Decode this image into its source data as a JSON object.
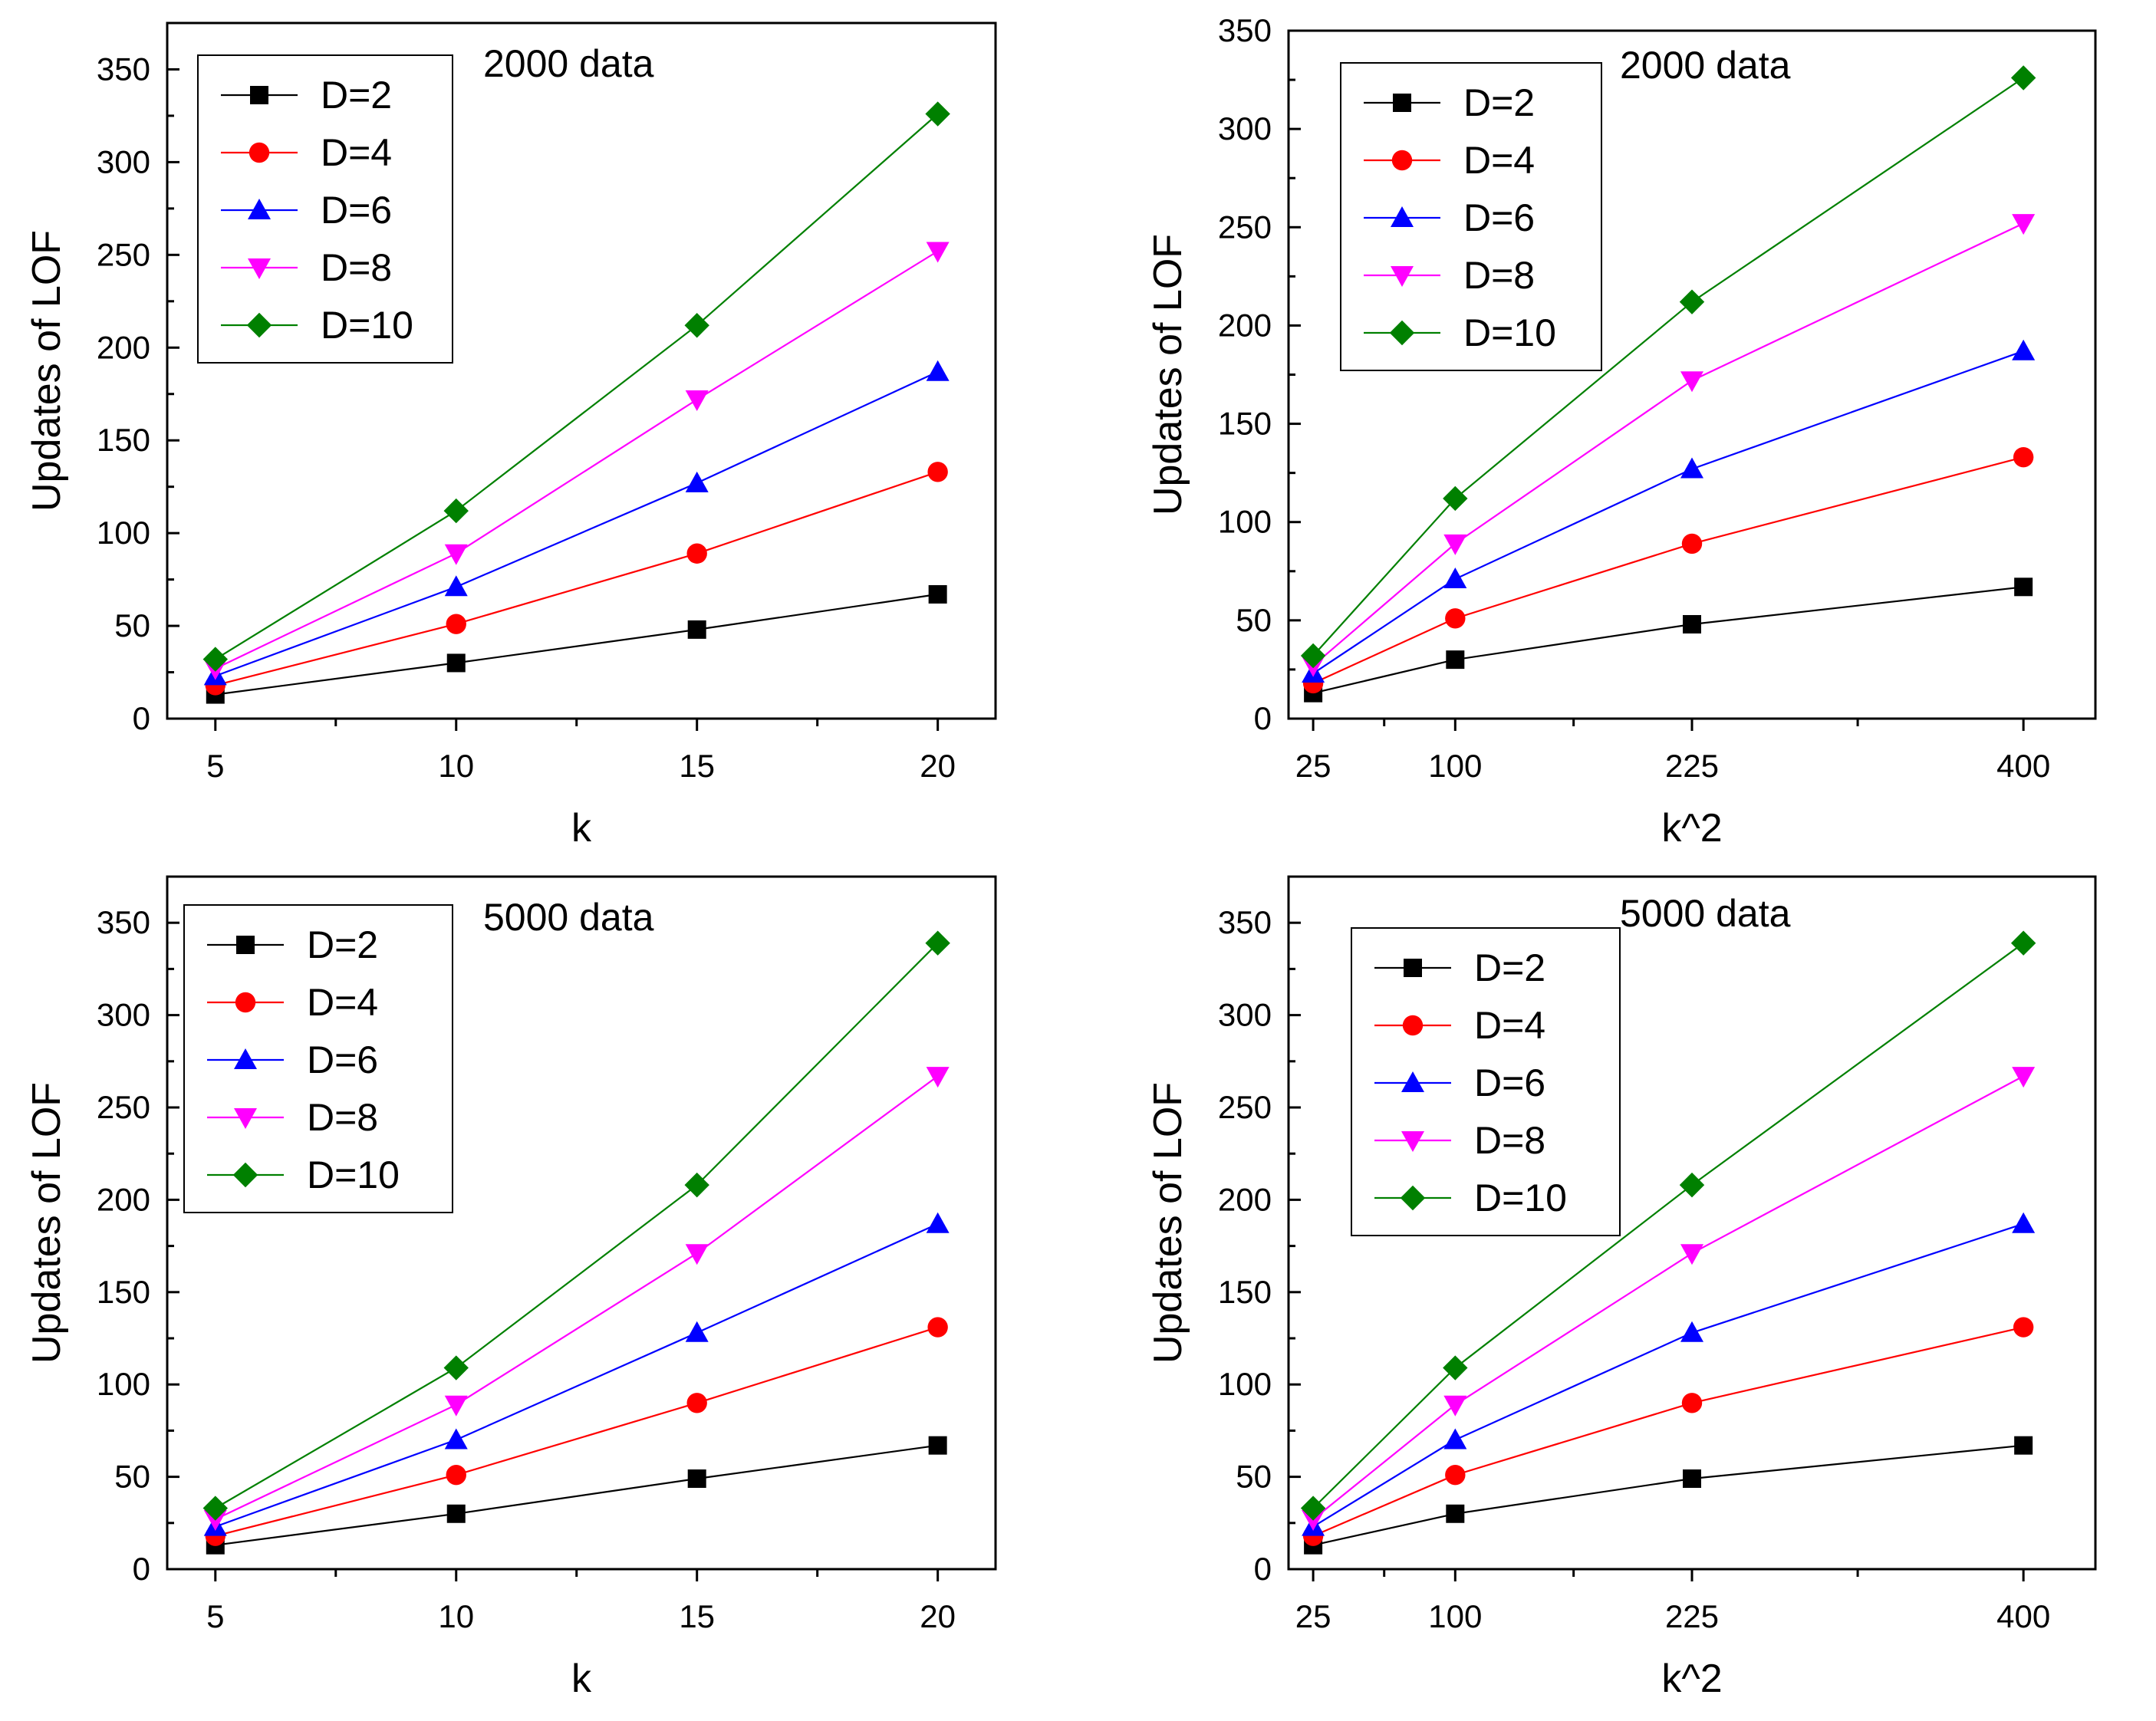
{
  "chart_data": [
    {
      "type": "line",
      "title": "2000 data",
      "xlabel": "k",
      "ylabel": "Updates of LOF",
      "x": [
        5,
        10,
        15,
        20
      ],
      "xticks": [
        5,
        10,
        15,
        20
      ],
      "xtick_labels": [
        "5",
        "10",
        "15",
        "20"
      ],
      "xminor": [
        7.5,
        12.5,
        17.5
      ],
      "xlim": [
        4,
        21.2
      ],
      "ylim": [
        0,
        375
      ],
      "yticks": [
        0,
        50,
        100,
        150,
        200,
        250,
        300,
        350
      ],
      "ytick_labels": [
        "0",
        "50",
        "100",
        "150",
        "200",
        "250",
        "300",
        "350"
      ],
      "legend_loc": "top-left",
      "series": [
        {
          "name": "D=2",
          "values": [
            13,
            30,
            48,
            67
          ],
          "color": "#000000",
          "marker": "square"
        },
        {
          "name": "D=4",
          "values": [
            18,
            51,
            89,
            133
          ],
          "color": "#ff0000",
          "marker": "circle"
        },
        {
          "name": "D=6",
          "values": [
            23,
            71,
            127,
            187
          ],
          "color": "#0000ff",
          "marker": "triangle-up"
        },
        {
          "name": "D=8",
          "values": [
            27,
            89,
            172,
            252
          ],
          "color": "#ff00ff",
          "marker": "triangle-down"
        },
        {
          "name": "D=10",
          "values": [
            32,
            112,
            212,
            326
          ],
          "color": "#008000",
          "marker": "diamond"
        }
      ]
    },
    {
      "type": "line",
      "title": "2000 data",
      "xlabel": "k^2",
      "ylabel": "Updates of LOF",
      "x": [
        25,
        100,
        225,
        400
      ],
      "xticks": [
        25,
        100,
        225,
        400
      ],
      "xtick_labels": [
        "25",
        "100",
        "225",
        "400"
      ],
      "xminor": [
        62.5,
        162.5,
        312.5
      ],
      "xlim": [
        12,
        438
      ],
      "ylim": [
        0,
        350
      ],
      "yticks": [
        0,
        50,
        100,
        150,
        200,
        250,
        300,
        350
      ],
      "ytick_labels": [
        "0",
        "50",
        "100",
        "150",
        "200",
        "250",
        "300",
        "350"
      ],
      "legend_loc": "top-left",
      "series": [
        {
          "name": "D=2",
          "values": [
            13,
            30,
            48,
            67
          ],
          "color": "#000000",
          "marker": "square"
        },
        {
          "name": "D=4",
          "values": [
            18,
            51,
            89,
            133
          ],
          "color": "#ff0000",
          "marker": "circle"
        },
        {
          "name": "D=6",
          "values": [
            23,
            71,
            127,
            187
          ],
          "color": "#0000ff",
          "marker": "triangle-up"
        },
        {
          "name": "D=8",
          "values": [
            27,
            89,
            172,
            252
          ],
          "color": "#ff00ff",
          "marker": "triangle-down"
        },
        {
          "name": "D=10",
          "values": [
            32,
            112,
            212,
            326
          ],
          "color": "#008000",
          "marker": "diamond"
        }
      ]
    },
    {
      "type": "line",
      "title": "5000 data",
      "xlabel": "k",
      "ylabel": "Updates of LOF",
      "x": [
        5,
        10,
        15,
        20
      ],
      "xticks": [
        5,
        10,
        15,
        20
      ],
      "xtick_labels": [
        "5",
        "10",
        "15",
        "20"
      ],
      "xminor": [
        7.5,
        12.5,
        17.5
      ],
      "xlim": [
        4,
        21.2
      ],
      "ylim": [
        0,
        375
      ],
      "yticks": [
        0,
        50,
        100,
        150,
        200,
        250,
        300,
        350
      ],
      "ytick_labels": [
        "0",
        "50",
        "100",
        "150",
        "200",
        "250",
        "300",
        "350"
      ],
      "legend_loc": "top-left",
      "series": [
        {
          "name": "D=2",
          "values": [
            13,
            30,
            49,
            67
          ],
          "color": "#000000",
          "marker": "square"
        },
        {
          "name": "D=4",
          "values": [
            18,
            51,
            90,
            131
          ],
          "color": "#ff0000",
          "marker": "circle"
        },
        {
          "name": "D=6",
          "values": [
            23,
            70,
            128,
            187
          ],
          "color": "#0000ff",
          "marker": "triangle-up"
        },
        {
          "name": "D=8",
          "values": [
            27,
            89,
            171,
            267
          ],
          "color": "#ff00ff",
          "marker": "triangle-down"
        },
        {
          "name": "D=10",
          "values": [
            33,
            109,
            208,
            339
          ],
          "color": "#008000",
          "marker": "diamond"
        }
      ]
    },
    {
      "type": "line",
      "title": "5000 data",
      "xlabel": "k^2",
      "ylabel": "Updates of LOF",
      "x": [
        25,
        100,
        225,
        400
      ],
      "xticks": [
        25,
        100,
        225,
        400
      ],
      "xtick_labels": [
        "25",
        "100",
        "225",
        "400"
      ],
      "xminor": [
        62.5,
        162.5,
        312.5
      ],
      "xlim": [
        12,
        438
      ],
      "ylim": [
        0,
        375
      ],
      "yticks": [
        0,
        50,
        100,
        150,
        200,
        250,
        300,
        350
      ],
      "ytick_labels": [
        "0",
        "50",
        "100",
        "150",
        "200",
        "250",
        "300",
        "350"
      ],
      "legend_loc": "top-left",
      "series": [
        {
          "name": "D=2",
          "values": [
            13,
            30,
            49,
            67
          ],
          "color": "#000000",
          "marker": "square"
        },
        {
          "name": "D=4",
          "values": [
            18,
            51,
            90,
            131
          ],
          "color": "#ff0000",
          "marker": "circle"
        },
        {
          "name": "D=6",
          "values": [
            23,
            70,
            128,
            187
          ],
          "color": "#0000ff",
          "marker": "triangle-up"
        },
        {
          "name": "D=8",
          "values": [
            27,
            89,
            171,
            267
          ],
          "color": "#ff00ff",
          "marker": "triangle-down"
        },
        {
          "name": "D=10",
          "values": [
            33,
            109,
            208,
            339
          ],
          "color": "#008000",
          "marker": "diamond"
        }
      ]
    }
  ]
}
